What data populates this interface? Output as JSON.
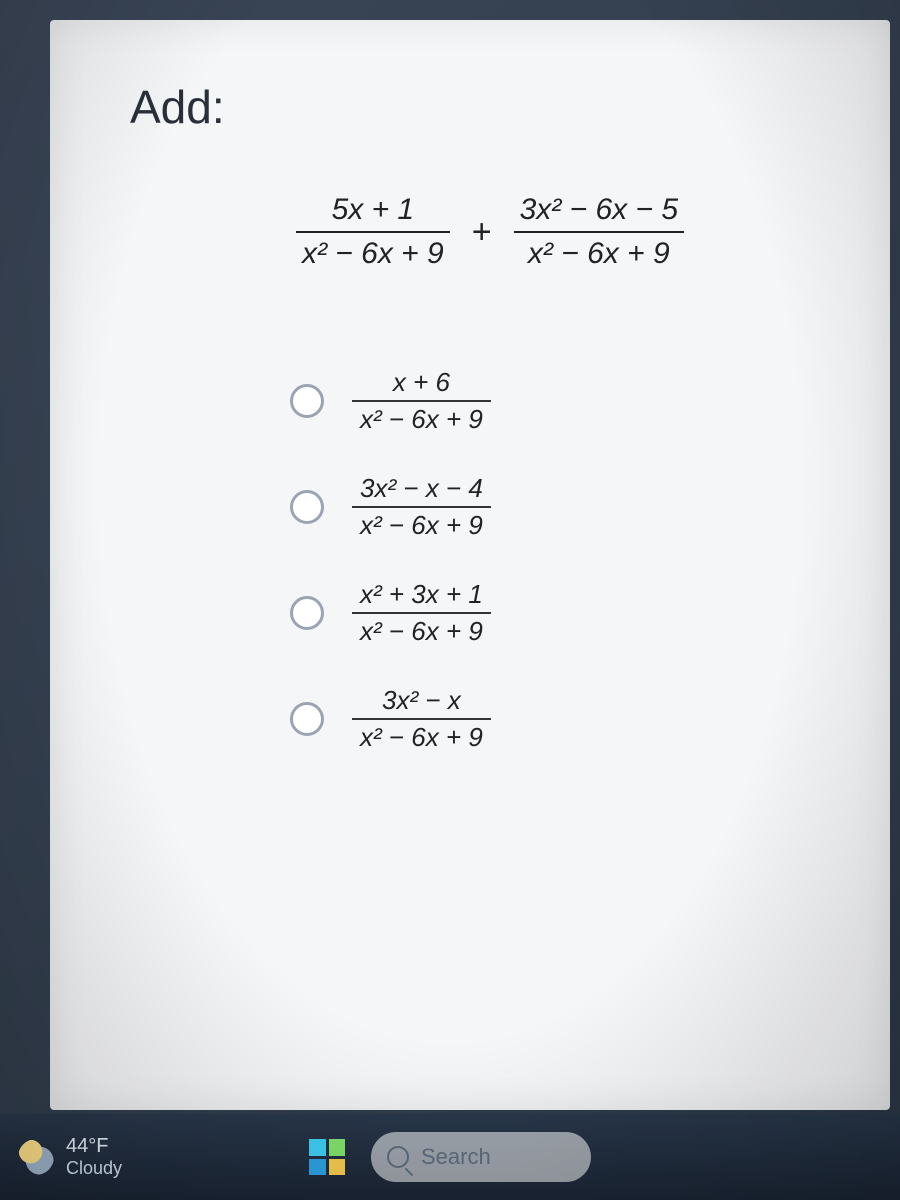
{
  "colors": {
    "page_bg_start": "#3a4556",
    "page_bg_end": "#2c3846",
    "panel_bg": "#f5f6f8",
    "text": "#222222",
    "title": "#29303a",
    "radio_border": "#9aa4b2",
    "taskbar_text": "#e6eef7",
    "search_bg": "rgba(255,255,255,0.55)",
    "search_text": "#5a6b7d"
  },
  "question": {
    "title": "Add:",
    "title_fontsize": 46,
    "left": {
      "num": "5x + 1",
      "den": "x² − 6x + 9"
    },
    "operator": "+",
    "right": {
      "num": "3x² − 6x − 5",
      "den": "x² − 6x + 9"
    },
    "expr_fontsize": 30
  },
  "options": [
    {
      "num": "x + 6",
      "den": "x² − 6x + 9"
    },
    {
      "num": "3x² − x − 4",
      "den": "x² − 6x + 9"
    },
    {
      "num": "x² + 3x + 1",
      "den": "x² − 6x + 9"
    },
    {
      "num": "3x² − x",
      "den": "x² − 6x + 9"
    }
  ],
  "option_fontsize": 26,
  "taskbar": {
    "weather": {
      "temp": "44°F",
      "condition": "Cloudy"
    },
    "search_placeholder": "Search"
  }
}
